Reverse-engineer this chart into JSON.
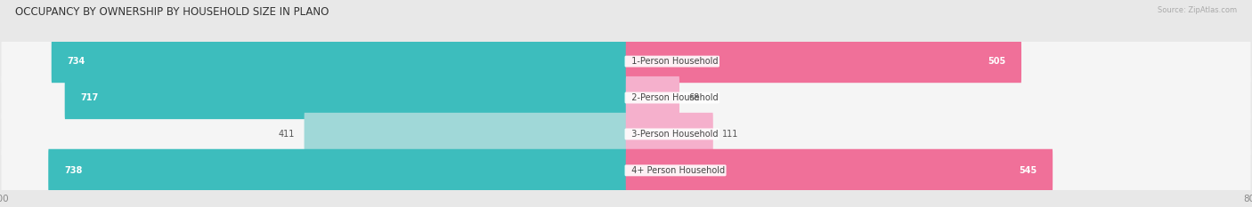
{
  "title": "OCCUPANCY BY OWNERSHIP BY HOUSEHOLD SIZE IN PLANO",
  "source": "Source: ZipAtlas.com",
  "categories": [
    "1-Person Household",
    "2-Person Household",
    "3-Person Household",
    "4+ Person Household"
  ],
  "owner_values": [
    734,
    717,
    411,
    738
  ],
  "renter_values": [
    505,
    68,
    111,
    545
  ],
  "owner_color_dark": "#3dbdbd",
  "owner_color_light": "#a0d8d8",
  "renter_color_dark": "#f07099",
  "renter_color_light": "#f5b0cc",
  "axis_max": 800,
  "bar_height": 0.62,
  "background_color": "#e8e8e8",
  "bar_bg_color": "#f5f5f5",
  "label_fontsize": 7.0,
  "title_fontsize": 8.5,
  "legend_fontsize": 7.5,
  "tick_fontsize": 7.5,
  "value_fontsize": 7.0
}
